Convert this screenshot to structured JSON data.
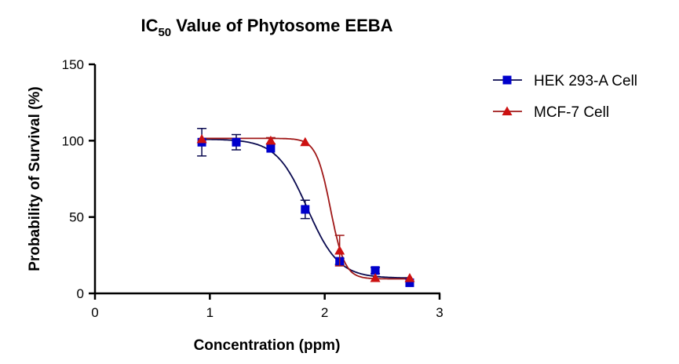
{
  "chart_data": {
    "type": "scatter",
    "title_main": "IC",
    "title_sub": "50",
    "title_rest": " Value of Phytosome EEBA",
    "xlabel": "Concentration (ppm)",
    "ylabel": "Probability of Survival (%)",
    "xlim": [
      0,
      3
    ],
    "ylim": [
      0,
      150
    ],
    "xticks": [
      "0",
      "1",
      "2",
      "3"
    ],
    "yticks": [
      "0",
      "50",
      "100",
      "150"
    ],
    "grid": false,
    "legend_position": "right",
    "series": [
      {
        "name": "HEK 293-A Cell",
        "color": "#0000cc",
        "line_color": "#0a0a50",
        "marker": "square",
        "x": [
          0.93,
          1.23,
          1.53,
          1.83,
          2.13,
          2.44,
          2.74
        ],
        "y": [
          99,
          99,
          95,
          55,
          21,
          15,
          7
        ],
        "err": [
          9,
          5,
          1,
          6,
          2,
          2,
          1
        ],
        "fit": {
          "top": 101,
          "bottom": 10,
          "logIC50": 1.85,
          "hill": 3.2
        }
      },
      {
        "name": "MCF-7 Cell",
        "color": "#cc1111",
        "line_color": "#a01818",
        "marker": "triangle",
        "x": [
          0.93,
          1.53,
          1.83,
          2.13,
          2.44,
          2.74
        ],
        "y": [
          101,
          100,
          99,
          28,
          10,
          10
        ],
        "err": [
          1,
          2,
          1,
          10,
          1,
          1
        ],
        "fit": {
          "top": 101.5,
          "bottom": 9.5,
          "logIC50": 2.05,
          "hill": 7
        }
      }
    ]
  }
}
